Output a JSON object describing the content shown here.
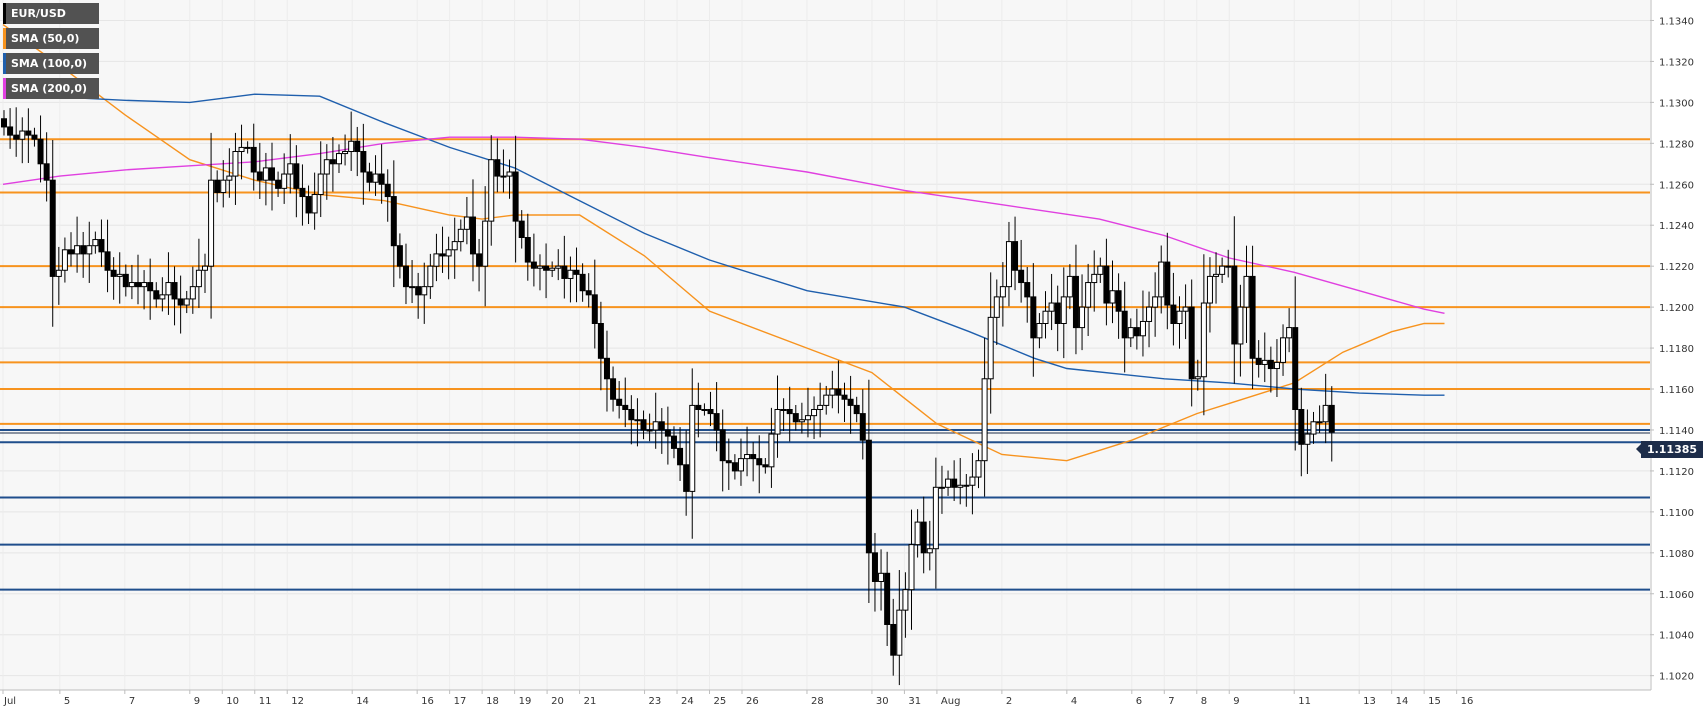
{
  "legend": [
    {
      "label": "EUR/USD",
      "color": "#000000"
    },
    {
      "label": "SMA (50,0)",
      "color": "#f7931e"
    },
    {
      "label": "SMA (100,0)",
      "color": "#1f5fad"
    },
    {
      "label": "SMA (200,0)",
      "color": "#e040e0"
    }
  ],
  "price_tag": "1.11385",
  "chart_data": {
    "type": "candlestick",
    "symbol": "EUR/USD",
    "ylim": [
      1.1013,
      1.135
    ],
    "y_ticks": [
      "1.1020",
      "1.1040",
      "1.1060",
      "1.1080",
      "1.1100",
      "1.1120",
      "1.1140",
      "1.1160",
      "1.1180",
      "1.1200",
      "1.1220",
      "1.1240",
      "1.1260",
      "1.1280",
      "1.1300",
      "1.1320",
      "1.1340"
    ],
    "x_ticks": [
      {
        "label": "Jul",
        "x": 0
      },
      {
        "label": "5",
        "x": 14
      },
      {
        "label": "7",
        "x": 30
      },
      {
        "label": "9",
        "x": 46
      },
      {
        "label": "10",
        "x": 54
      },
      {
        "label": "11",
        "x": 62
      },
      {
        "label": "12",
        "x": 70
      },
      {
        "label": "14",
        "x": 86
      },
      {
        "label": "16",
        "x": 102
      },
      {
        "label": "17",
        "x": 110
      },
      {
        "label": "18",
        "x": 118
      },
      {
        "label": "19",
        "x": 126
      },
      {
        "label": "20",
        "x": 134
      },
      {
        "label": "21",
        "x": 142
      },
      {
        "label": "23",
        "x": 158
      },
      {
        "label": "24",
        "x": 166
      },
      {
        "label": "25",
        "x": 174
      },
      {
        "label": "26",
        "x": 182
      },
      {
        "label": "28",
        "x": 198
      },
      {
        "label": "30",
        "x": 214
      },
      {
        "label": "31",
        "x": 222
      },
      {
        "label": "Aug",
        "x": 230
      },
      {
        "label": "2",
        "x": 246
      },
      {
        "label": "4",
        "x": 262
      },
      {
        "label": "6",
        "x": 278
      },
      {
        "label": "7",
        "x": 286
      },
      {
        "label": "8",
        "x": 294
      },
      {
        "label": "9",
        "x": 302
      },
      {
        "label": "11",
        "x": 318
      },
      {
        "label": "13",
        "x": 334
      },
      {
        "label": "14",
        "x": 342
      },
      {
        "label": "15",
        "x": 350
      },
      {
        "label": "16",
        "x": 358
      }
    ],
    "x_max": 364,
    "resistance_levels": [
      1.1282,
      1.1256,
      1.122,
      1.12,
      1.1173,
      1.116,
      1.1143
    ],
    "support_levels": [
      1.114,
      1.1134,
      1.1107,
      1.1084,
      1.1062
    ],
    "last_price": 1.11385,
    "closes": [
      1.1288,
      1.1284,
      1.1282,
      1.1286,
      1.1284,
      1.1282,
      1.127,
      1.1262,
      1.1215,
      1.1218,
      1.1228,
      1.1226,
      1.123,
      1.1226,
      1.123,
      1.1233,
      1.1227,
      1.1218,
      1.1215,
      1.1216,
      1.121,
      1.1212,
      1.121,
      1.1212,
      1.1208,
      1.1204,
      1.1206,
      1.1212,
      1.1204,
      1.1201,
      1.1204,
      1.121,
      1.1218,
      1.122,
      1.1262,
      1.1256,
      1.1262,
      1.1264,
      1.1276,
      1.1278,
      1.1278,
      1.1266,
      1.1262,
      1.1268,
      1.1262,
      1.1258,
      1.1265,
      1.127,
      1.1258,
      1.1254,
      1.1246,
      1.1255,
      1.1265,
      1.1272,
      1.127,
      1.1275,
      1.1276,
      1.1281,
      1.1276,
      1.1266,
      1.1261,
      1.1265,
      1.126,
      1.1254,
      1.123,
      1.122,
      1.121,
      1.121,
      1.1206,
      1.121,
      1.122,
      1.1226,
      1.1225,
      1.1228,
      1.1232,
      1.1238,
      1.1244,
      1.1226,
      1.122,
      1.1242,
      1.1272,
      1.1264,
      1.1264,
      1.1266,
      1.1242,
      1.1234,
      1.1222,
      1.1219,
      1.122,
      1.1218,
      1.1219,
      1.122,
      1.1214,
      1.1218,
      1.1216,
      1.1208,
      1.1206,
      1.1192,
      1.1175,
      1.1165,
      1.1155,
      1.1152,
      1.115,
      1.1145,
      1.1145,
      1.114,
      1.114,
      1.1144,
      1.114,
      1.1137,
      1.1131,
      1.1123,
      1.111,
      1.1152,
      1.115,
      1.115,
      1.1148,
      1.114,
      1.1125,
      1.1124,
      1.112,
      1.1126,
      1.1128,
      1.1126,
      1.1123,
      1.1122,
      1.1138,
      1.115,
      1.115,
      1.1148,
      1.1144,
      1.1145,
      1.1147,
      1.115,
      1.1152,
      1.1157,
      1.116,
      1.1157,
      1.1155,
      1.1152,
      1.1148,
      1.1135,
      1.108,
      1.1066,
      1.107,
      1.1045,
      1.103,
      1.1052,
      1.1062,
      1.1084,
      1.1095,
      1.108,
      1.1082,
      1.1112,
      1.1112,
      1.1116,
      1.1112,
      1.1113,
      1.1113,
      1.1117,
      1.1125,
      1.1165,
      1.1195,
      1.1205,
      1.121,
      1.1232,
      1.1218,
      1.1212,
      1.1205,
      1.1185,
      1.1192,
      1.1198,
      1.1202,
      1.1192,
      1.1205,
      1.1215,
      1.119,
      1.12,
      1.1212,
      1.1216,
      1.122,
      1.1202,
      1.1208,
      1.1198,
      1.1185,
      1.119,
      1.1186,
      1.1193,
      1.12,
      1.1205,
      1.1222,
      1.1201,
      1.1192,
      1.1198,
      1.12,
      1.1165,
      1.1166,
      1.1202,
      1.1215,
      1.1216,
      1.122,
      1.122,
      1.1182,
      1.12,
      1.1215,
      1.1175,
      1.1172,
      1.1174,
      1.117,
      1.1173,
      1.1185,
      1.119,
      1.115,
      1.1133,
      1.1138,
      1.1144,
      1.1144,
      1.1152,
      1.1139
    ],
    "series": [
      {
        "name": "SMA (50,0)",
        "color": "#f7931e",
        "points": [
          [
            0,
            1.1338
          ],
          [
            14,
            1.1318
          ],
          [
            30,
            1.1294
          ],
          [
            46,
            1.1272
          ],
          [
            62,
            1.1262
          ],
          [
            78,
            1.1255
          ],
          [
            94,
            1.1252
          ],
          [
            110,
            1.1245
          ],
          [
            118,
            1.1243
          ],
          [
            126,
            1.1245
          ],
          [
            142,
            1.1245
          ],
          [
            158,
            1.1225
          ],
          [
            174,
            1.1198
          ],
          [
            198,
            1.118
          ],
          [
            214,
            1.1168
          ],
          [
            230,
            1.1143
          ],
          [
            246,
            1.1128
          ],
          [
            262,
            1.1125
          ],
          [
            278,
            1.1135
          ],
          [
            294,
            1.1148
          ],
          [
            302,
            1.1153
          ],
          [
            318,
            1.1163
          ],
          [
            330,
            1.1178
          ],
          [
            342,
            1.1188
          ],
          [
            350,
            1.1192
          ],
          [
            355,
            1.1192
          ]
        ]
      },
      {
        "name": "SMA (100,0)",
        "color": "#1f5fad",
        "points": [
          [
            0,
            1.1304
          ],
          [
            30,
            1.1301
          ],
          [
            46,
            1.13
          ],
          [
            62,
            1.1304
          ],
          [
            78,
            1.1303
          ],
          [
            94,
            1.129
          ],
          [
            110,
            1.1278
          ],
          [
            126,
            1.1268
          ],
          [
            142,
            1.1252
          ],
          [
            158,
            1.1236
          ],
          [
            174,
            1.1223
          ],
          [
            198,
            1.1208
          ],
          [
            222,
            1.12
          ],
          [
            238,
            1.1188
          ],
          [
            254,
            1.1175
          ],
          [
            262,
            1.117
          ],
          [
            286,
            1.1165
          ],
          [
            302,
            1.1163
          ],
          [
            318,
            1.116
          ],
          [
            334,
            1.1158
          ],
          [
            350,
            1.1157
          ],
          [
            355,
            1.1157
          ]
        ]
      },
      {
        "name": "SMA (200,0)",
        "color": "#e040e0",
        "points": [
          [
            0,
            1.126
          ],
          [
            14,
            1.1264
          ],
          [
            30,
            1.1267
          ],
          [
            46,
            1.1269
          ],
          [
            62,
            1.1271
          ],
          [
            78,
            1.1275
          ],
          [
            94,
            1.128
          ],
          [
            110,
            1.1283
          ],
          [
            126,
            1.1283
          ],
          [
            142,
            1.1282
          ],
          [
            158,
            1.1278
          ],
          [
            174,
            1.1273
          ],
          [
            198,
            1.1266
          ],
          [
            222,
            1.1257
          ],
          [
            246,
            1.125
          ],
          [
            270,
            1.1243
          ],
          [
            286,
            1.1235
          ],
          [
            302,
            1.1224
          ],
          [
            318,
            1.1217
          ],
          [
            334,
            1.1208
          ],
          [
            350,
            1.1199
          ],
          [
            355,
            1.1197
          ]
        ]
      }
    ]
  }
}
